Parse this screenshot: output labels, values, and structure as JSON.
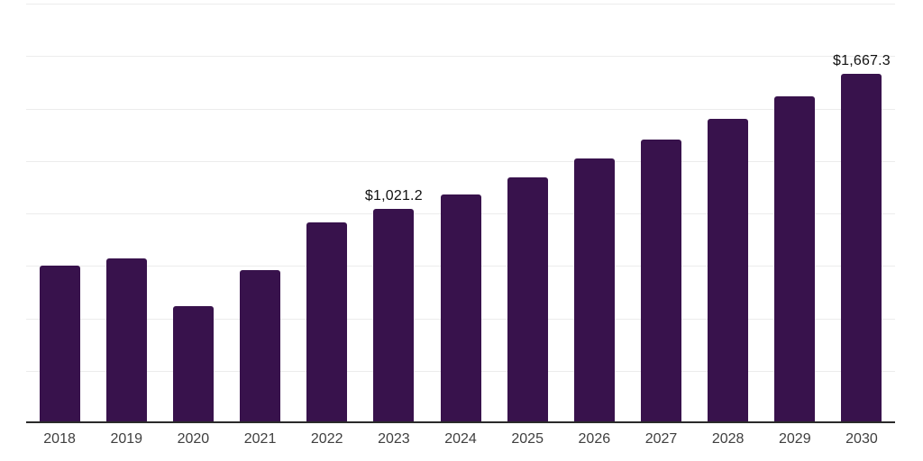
{
  "chart": {
    "background_color": "#ffffff",
    "bar_color": "#38124c",
    "grid_color": "#ececec",
    "axis_color": "#2a2a2a",
    "x_label_color": "#3f3f3f",
    "data_label_color": "#111111"
  },
  "chart_data": {
    "type": "bar",
    "title": "",
    "xlabel": "",
    "ylabel": "",
    "categories": [
      "2018",
      "2019",
      "2020",
      "2021",
      "2022",
      "2023",
      "2024",
      "2025",
      "2026",
      "2027",
      "2028",
      "2029",
      "2030"
    ],
    "values": [
      750,
      785,
      557,
      728,
      959,
      1021.2,
      1092,
      1173,
      1263,
      1353,
      1451,
      1558,
      1667.3
    ],
    "data_labels": [
      {
        "category": "2023",
        "text": "$1,021.2"
      },
      {
        "category": "2030",
        "text": "$1,667.3"
      }
    ],
    "ylim": [
      0,
      2000
    ],
    "gridline_step": 250,
    "gridline_count": 8,
    "grid": "horizontal",
    "legend": "none",
    "y_axis_ticks_visible": false
  }
}
